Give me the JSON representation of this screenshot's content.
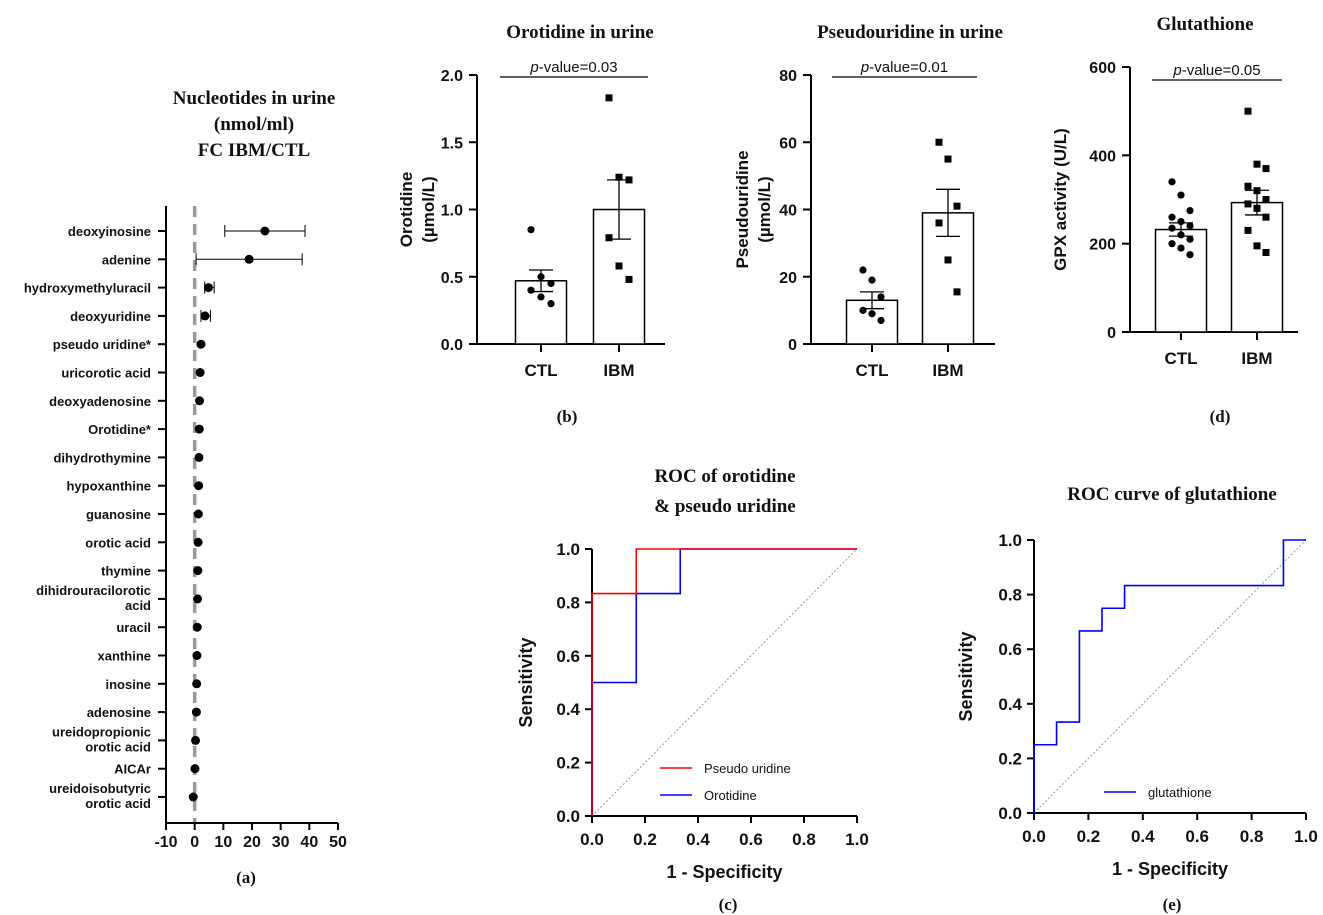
{
  "chart_data": [
    {
      "panel": "(a)",
      "type": "scatter",
      "title": [
        "Nucleotides in urine",
        "(nmol/ml)",
        "FC IBM/CTL"
      ],
      "xticks": [
        -10,
        0,
        10,
        20,
        30,
        40,
        50
      ],
      "xlim": [
        -10,
        50
      ],
      "reference_line_x": 0,
      "categories": [
        [
          "deoxyinosine"
        ],
        [
          "adenine"
        ],
        [
          "hydroxymethyluracil"
        ],
        [
          "deoxyuridine"
        ],
        [
          "pseudo uridine*"
        ],
        [
          "uricorotic acid"
        ],
        [
          "deoxyadenosine"
        ],
        [
          "Orotidine*"
        ],
        [
          "dihydrothymine"
        ],
        [
          "hypoxanthine"
        ],
        [
          "guanosine"
        ],
        [
          "orotic acid"
        ],
        [
          "thymine"
        ],
        [
          "dihidrouracilorotic",
          "acid"
        ],
        [
          "uracil"
        ],
        [
          "xanthine"
        ],
        [
          "inosine"
        ],
        [
          "adenosine"
        ],
        [
          "ureidopropionic",
          "orotic acid"
        ],
        [
          "AICAr"
        ],
        [
          "ureidoisobutyric",
          "orotic acid"
        ]
      ],
      "values": [
        24.5,
        19.0,
        4.8,
        3.6,
        2.2,
        1.9,
        1.7,
        1.6,
        1.5,
        1.4,
        1.3,
        1.2,
        1.1,
        1.0,
        0.9,
        0.8,
        0.7,
        0.6,
        0.3,
        0.1,
        -0.5
      ],
      "err_low": [
        10.5,
        0.5,
        3.5,
        2.2,
        null,
        null,
        null,
        null,
        null,
        null,
        null,
        null,
        null,
        null,
        null,
        null,
        null,
        null,
        null,
        null,
        null
      ],
      "err_high": [
        38.5,
        37.5,
        6.8,
        5.5,
        null,
        null,
        null,
        null,
        null,
        null,
        null,
        null,
        null,
        null,
        null,
        null,
        null,
        null,
        null,
        null,
        null
      ]
    },
    {
      "panel": "(b)",
      "type": "bar",
      "title": "Orotidine in urine",
      "ylabel": [
        "Orotidine",
        "(µmol/L)"
      ],
      "categories": [
        "CTL",
        "IBM"
      ],
      "ylim": [
        0,
        2.0
      ],
      "yticks": [
        "0.0",
        "0.5",
        "1.0",
        "1.5",
        "2.0"
      ],
      "values": [
        0.47,
        1.0
      ],
      "sem": [
        0.08,
        0.22
      ],
      "points": [
        [
          0.85,
          0.5,
          0.45,
          0.4,
          0.35,
          0.3
        ],
        [
          1.83,
          1.24,
          1.22,
          0.79,
          0.58,
          0.48
        ]
      ],
      "pvalue_label": "p",
      "pvalue_text": "-value=0.03"
    },
    {
      "panel": "",
      "type": "bar",
      "title": "Pseudouridine in urine",
      "ylabel": [
        "Pseudouridine",
        "(µmol/L)"
      ],
      "categories": [
        "CTL",
        "IBM"
      ],
      "ylim": [
        0,
        80
      ],
      "yticks": [
        "0",
        "20",
        "40",
        "60",
        "80"
      ],
      "values": [
        13,
        39
      ],
      "sem": [
        2.5,
        7
      ],
      "points": [
        [
          22,
          19,
          14,
          10,
          9,
          7
        ],
        [
          60,
          55,
          41,
          36,
          25,
          15.5
        ]
      ],
      "pvalue_label": "p",
      "pvalue_text": "-value=0.01"
    },
    {
      "panel": "(d)",
      "type": "bar",
      "title": "Glutathione",
      "ylabel": [
        "GPX activity (U/L)"
      ],
      "categories": [
        "CTL",
        "IBM"
      ],
      "ylim": [
        0,
        600
      ],
      "yticks": [
        "0",
        "200",
        "400",
        "600"
      ],
      "values": [
        232,
        293
      ],
      "sem": [
        15,
        28
      ],
      "points": [
        [
          340,
          310,
          275,
          260,
          250,
          240,
          235,
          220,
          210,
          200,
          190,
          175
        ],
        [
          500,
          380,
          370,
          330,
          320,
          300,
          290,
          280,
          260,
          230,
          195,
          180
        ]
      ],
      "pvalue_label": "p",
      "pvalue_text": "-value=0.05"
    },
    {
      "panel": "(c)",
      "type": "line",
      "title": [
        "ROC of orotidine",
        "& pseudo uridine"
      ],
      "xlabel": "1 - Specificity",
      "ylabel": "Sensitivity",
      "xlim": [
        0,
        1
      ],
      "ylim": [
        0,
        1
      ],
      "xticks": [
        "0.0",
        "0.2",
        "0.4",
        "0.6",
        "0.8",
        "1.0"
      ],
      "yticks": [
        "0.0",
        "0.2",
        "0.4",
        "0.6",
        "0.8",
        "1.0"
      ],
      "series": [
        {
          "name": "Pseudo uridine",
          "color": "#ff0000",
          "x": [
            0,
            0,
            0.167,
            0.167,
            1
          ],
          "y": [
            0,
            0.833,
            0.833,
            1,
            1
          ]
        },
        {
          "name": "Orotidine",
          "color": "#0000ff",
          "x": [
            0,
            0,
            0.167,
            0.167,
            0.333,
            0.333,
            1
          ],
          "y": [
            0,
            0.5,
            0.5,
            0.833,
            0.833,
            1,
            1
          ]
        }
      ]
    },
    {
      "panel": "(e)",
      "type": "line",
      "title": "ROC curve of glutathione",
      "xlabel": "1 - Specificity",
      "ylabel": "Sensitivity",
      "xlim": [
        0,
        1
      ],
      "ylim": [
        0,
        1
      ],
      "xticks": [
        "0.0",
        "0.2",
        "0.4",
        "0.6",
        "0.8",
        "1.0"
      ],
      "yticks": [
        "0.0",
        "0.2",
        "0.4",
        "0.6",
        "0.8",
        "1.0"
      ],
      "series": [
        {
          "name": "glutathione",
          "color": "#0000ff",
          "x": [
            0,
            0,
            0.083,
            0.083,
            0.167,
            0.167,
            0.25,
            0.25,
            0.333,
            0.333,
            0.917,
            0.917,
            1
          ],
          "y": [
            0,
            0.25,
            0.25,
            0.333,
            0.333,
            0.667,
            0.667,
            0.75,
            0.75,
            0.833,
            0.833,
            1,
            1
          ]
        }
      ]
    }
  ],
  "panel_labels": {
    "b": "(b)",
    "c": "(c)",
    "d": "(d)",
    "e": "(e)",
    "a": "(a)"
  }
}
